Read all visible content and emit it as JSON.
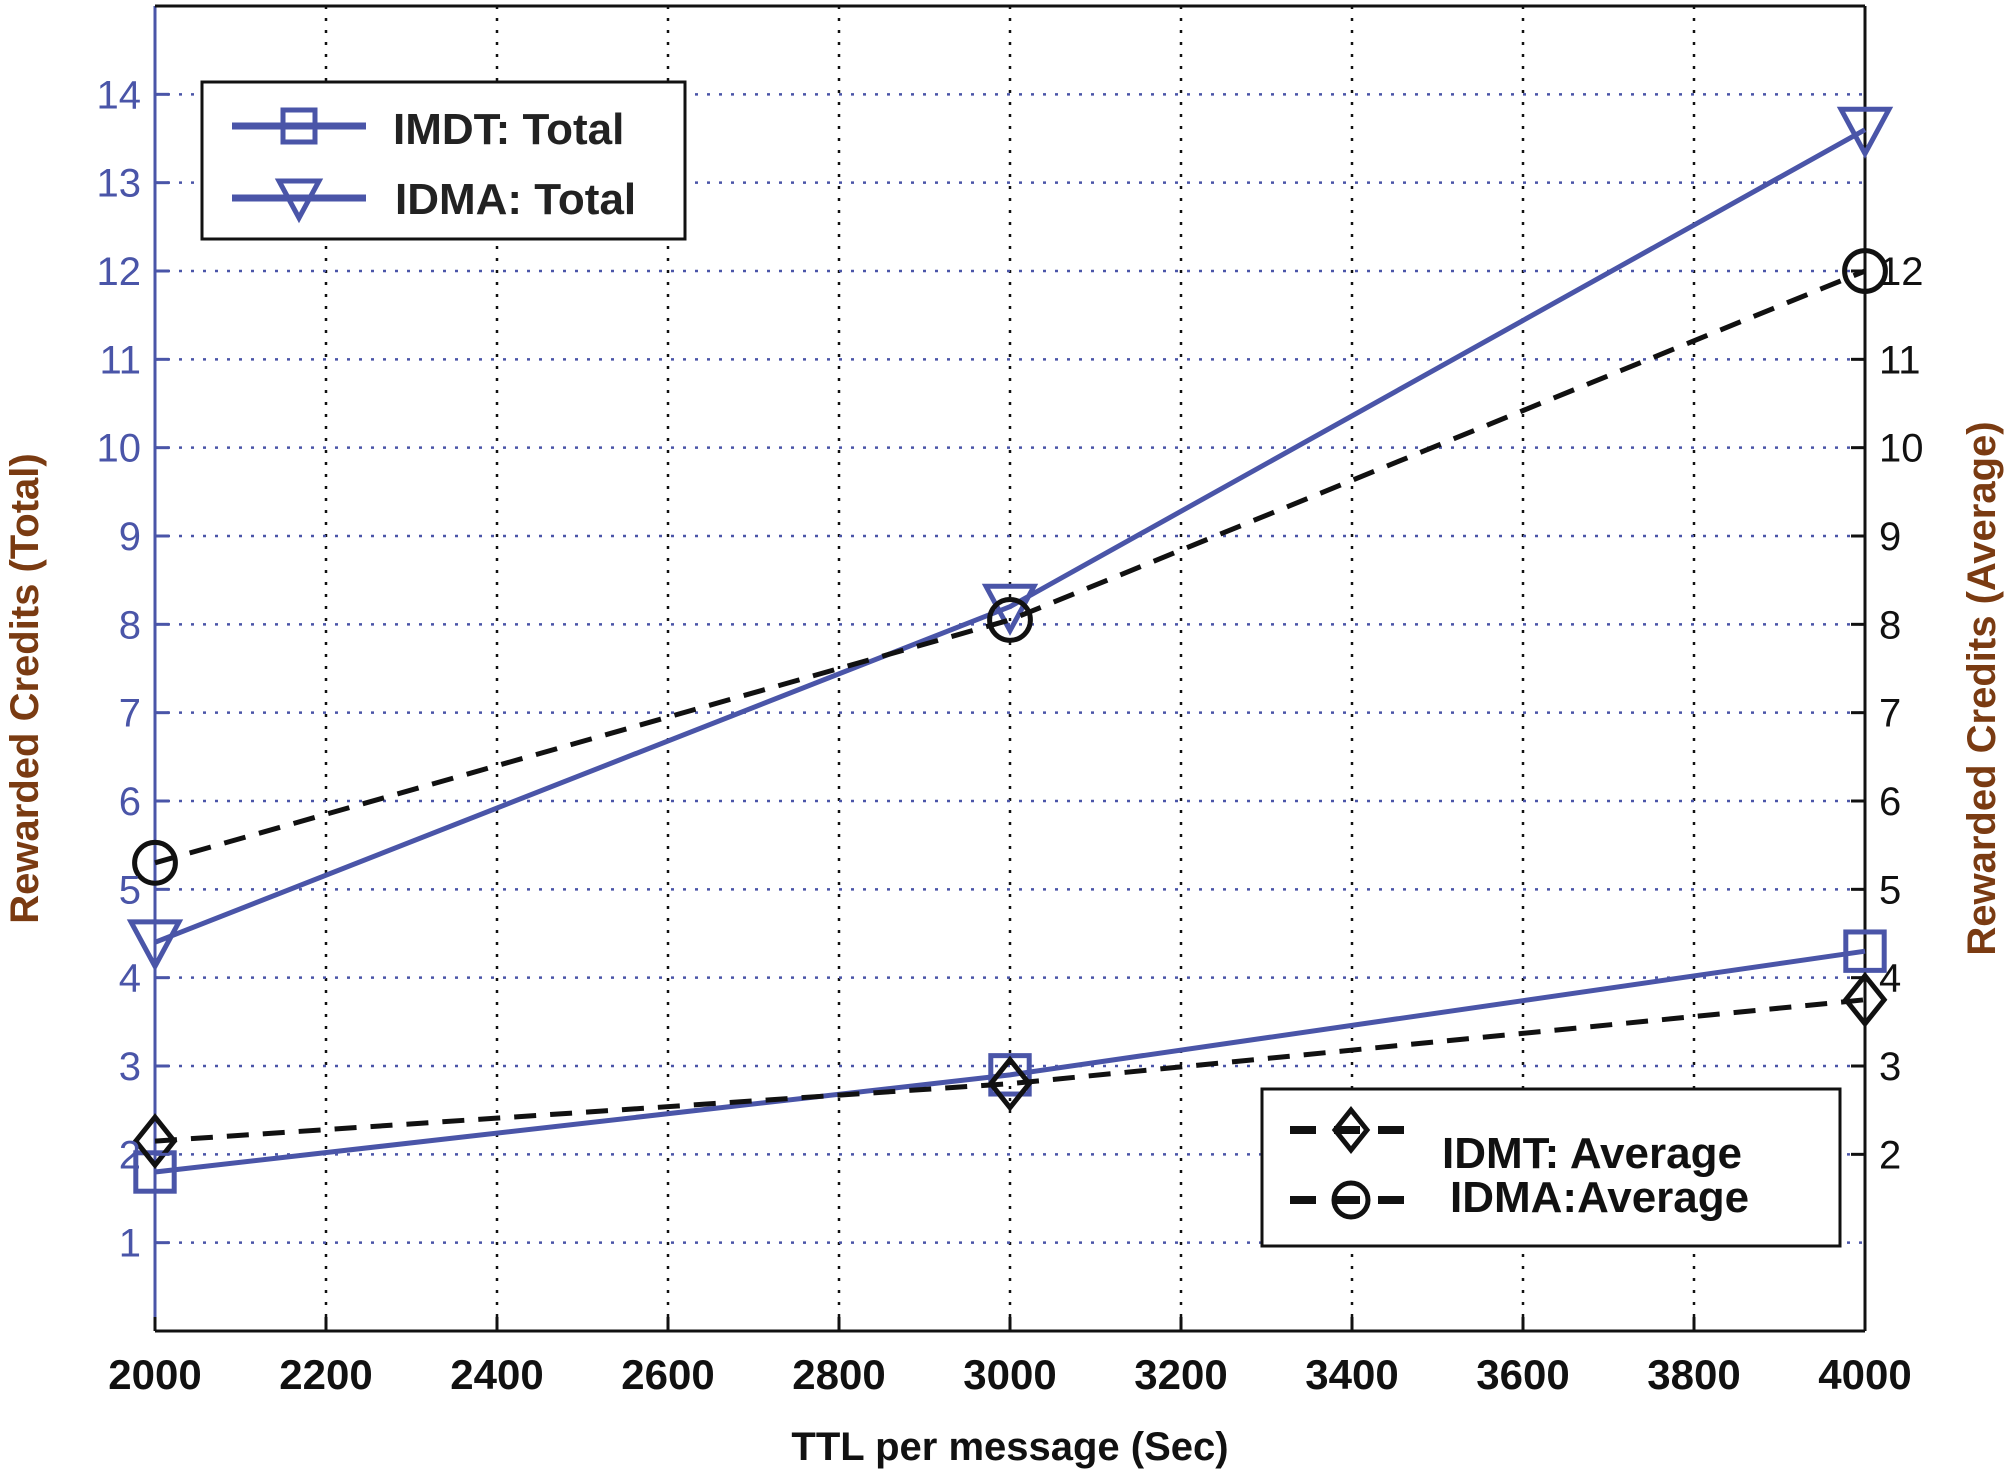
{
  "colors": {
    "blue": "#4a55a8",
    "black": "#111111",
    "left_axis_title": "#7a3b12",
    "right_axis_title": "#7a3b12",
    "grid_vertical": "#111111",
    "grid_horizontal": "#4a55a8"
  },
  "chart_data": {
    "type": "line",
    "xlabel": "TTL per message (Sec)",
    "ylabel_left": "Rewarded Credits (Total)",
    "ylabel_right": "Rewarded Credits (Average)",
    "xlim": [
      2000,
      4000
    ],
    "ylim_left": [
      0,
      15
    ],
    "ylim_right": [
      0,
      15
    ],
    "x_ticks": [
      2000,
      2200,
      2400,
      2600,
      2800,
      3000,
      3200,
      3400,
      3600,
      3800,
      4000
    ],
    "y_ticks_left": [
      1,
      2,
      3,
      4,
      5,
      6,
      7,
      8,
      9,
      10,
      11,
      12,
      13,
      14
    ],
    "y_ticks_right": [
      2,
      3,
      4,
      5,
      6,
      7,
      8,
      9,
      10,
      11,
      12
    ],
    "grid": true,
    "series": [
      {
        "name": "IMDT: Total",
        "axis": "left",
        "x": [
          2000,
          3000,
          4000
        ],
        "values": [
          1.8,
          2.9,
          4.3
        ],
        "marker": "square",
        "line": "solid",
        "color": "#4a55a8"
      },
      {
        "name": "IDMA: Total",
        "axis": "left",
        "x": [
          2000,
          3000,
          4000
        ],
        "values": [
          4.4,
          8.2,
          13.6
        ],
        "marker": "triangle-down",
        "line": "solid",
        "color": "#4a55a8"
      },
      {
        "name": "IDMT: Average",
        "axis": "right",
        "x": [
          2000,
          3000,
          4000
        ],
        "values": [
          2.15,
          2.8,
          3.75
        ],
        "marker": "diamond",
        "line": "dashed",
        "color": "#111111"
      },
      {
        "name": "IDMA:Average",
        "axis": "right",
        "x": [
          2000,
          3000,
          4000
        ],
        "values": [
          5.3,
          8.05,
          12.0
        ],
        "marker": "circle",
        "line": "dashed",
        "color": "#111111"
      }
    ],
    "legends": [
      {
        "placement": "top-left",
        "entries": [
          "IMDT: Total",
          "IDMA: Total"
        ]
      },
      {
        "placement": "bottom-right",
        "entries": [
          "IDMT: Average",
          "IDMA:Average"
        ]
      }
    ]
  }
}
